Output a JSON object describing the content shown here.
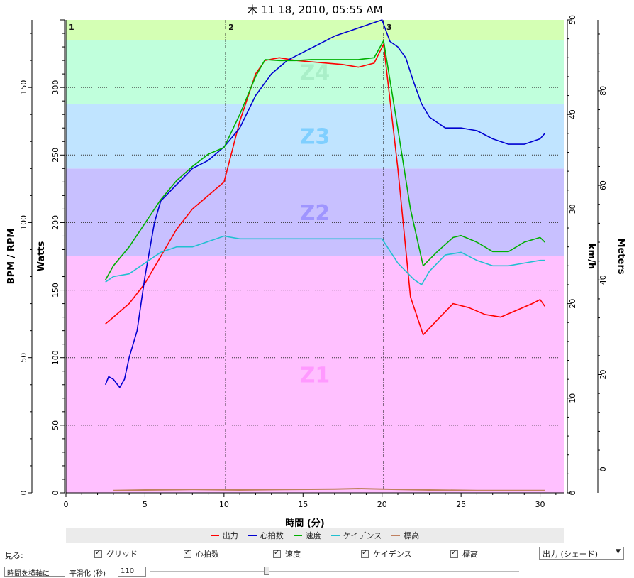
{
  "chart_data": {
    "type": "line",
    "title": "木 11 18, 2010, 05:55 AM",
    "xlabel": "時間 (分)",
    "x_ticks": [
      0,
      5,
      10,
      15,
      20,
      25,
      30
    ],
    "xlim": [
      0,
      31.5
    ],
    "axes": {
      "bpm_rpm": {
        "label": "BPM / RPM",
        "range": [
          0,
          175
        ],
        "ticks": [
          0,
          50,
          100,
          150
        ]
      },
      "watts": {
        "label": "Watts",
        "range": [
          0,
          350
        ],
        "ticks": [
          0,
          50,
          100,
          150,
          200,
          250,
          300
        ]
      },
      "kmh": {
        "label": "km/h",
        "range": [
          0,
          50
        ],
        "ticks": [
          0,
          10,
          20,
          30,
          40,
          50
        ]
      },
      "meters": {
        "label": "Meters",
        "range": [
          -5,
          95
        ],
        "ticks": [
          0,
          20,
          40,
          60,
          80
        ]
      }
    },
    "zones": [
      {
        "label": "Z1",
        "from": 0,
        "to": 175,
        "color": "#ffc0ff",
        "text_color": "#ff99ff"
      },
      {
        "label": "Z2",
        "from": 175,
        "to": 240,
        "color": "#c8c0ff",
        "text_color": "#9f95ff"
      },
      {
        "label": "Z3",
        "from": 240,
        "to": 288,
        "color": "#c0e4ff",
        "text_color": "#7fcfff"
      },
      {
        "label": "Z4",
        "from": 288,
        "to": 335,
        "color": "#c0ffdc",
        "text_color": "#a9efc8"
      },
      {
        "label": "",
        "from": 335,
        "to": 350,
        "color": "#d4ffb4",
        "text_color": "#ffffff"
      }
    ],
    "markers": [
      {
        "label": "1",
        "x": 0
      },
      {
        "label": "2",
        "x": 10.1
      },
      {
        "label": "3",
        "x": 20.1
      }
    ],
    "grid": true,
    "series": [
      {
        "name": "出力",
        "axis": "watts",
        "color": "#ff0000",
        "x": [
          2.5,
          3,
          4,
          5,
          6,
          7,
          8,
          9,
          10,
          11,
          12,
          12.6,
          13.5,
          14.5,
          15.5,
          16.5,
          17.5,
          18.5,
          19.5,
          20.1,
          21,
          21.8,
          22.6,
          23.5,
          24.5,
          25.5,
          26.5,
          27.5,
          28.5,
          29.5,
          30,
          30.3
        ],
        "y": [
          125,
          130,
          140,
          155,
          175,
          195,
          210,
          220,
          230,
          275,
          310,
          320,
          322,
          320,
          319,
          318,
          317,
          315,
          318,
          332,
          240,
          145,
          117,
          128,
          140,
          137,
          132,
          130,
          135,
          140,
          143,
          138
        ]
      },
      {
        "name": "心拍数",
        "axis": "bpm_rpm",
        "color": "#0000d0",
        "x": [
          2.5,
          2.7,
          3,
          3.4,
          3.7,
          4,
          4.5,
          5,
          5.6,
          6,
          7,
          8,
          9,
          10,
          11,
          12,
          13,
          14,
          15,
          16,
          17,
          18,
          19,
          20,
          20.5,
          21,
          21.5,
          22,
          22.5,
          23,
          24,
          25,
          26,
          27,
          28,
          29,
          30,
          30.3
        ],
        "y": [
          40,
          43,
          42,
          39,
          42,
          50,
          60,
          80,
          100,
          108,
          114,
          120,
          123,
          128,
          135,
          147,
          155,
          160,
          163,
          166,
          169,
          171,
          173,
          175,
          167,
          165,
          161,
          152,
          144,
          139,
          135,
          135,
          134,
          131,
          129,
          129,
          131,
          133
        ]
      },
      {
        "name": "速度",
        "axis": "kmh",
        "color": "#00b000",
        "x": [
          2.5,
          3,
          4,
          5,
          6,
          7,
          8,
          9,
          10,
          11,
          12,
          12.6,
          13.5,
          14.5,
          15.5,
          16.5,
          17.5,
          18.5,
          19.5,
          20.1,
          21,
          21.8,
          22.6,
          23.5,
          24.5,
          25,
          26,
          27,
          28,
          29,
          30,
          30.3
        ],
        "y": [
          22.5,
          24,
          26,
          28.5,
          31,
          33,
          34.5,
          35.8,
          36.5,
          40,
          44,
          45.8,
          45.7,
          45.7,
          45.8,
          45.8,
          45.8,
          45.8,
          46,
          47.8,
          38.5,
          30,
          24,
          25.5,
          27,
          27.2,
          26.5,
          25.5,
          25.5,
          26.5,
          27,
          26.5
        ]
      },
      {
        "name": "ケイデンス",
        "axis": "bpm_rpm",
        "color": "#20c0d0",
        "x": [
          2.5,
          3,
          4,
          5,
          6,
          7,
          8,
          9,
          10,
          11,
          12,
          13,
          14,
          15,
          16,
          17,
          18,
          19,
          20,
          21,
          22,
          22.5,
          23,
          24,
          25,
          26,
          27,
          28,
          29,
          30,
          30.3
        ],
        "y": [
          78,
          80,
          81,
          85,
          89,
          91,
          91,
          93,
          95,
          94,
          94,
          94,
          94,
          94,
          94,
          94,
          94,
          94,
          94,
          85,
          79,
          77,
          82,
          88,
          89,
          86,
          84,
          84,
          85,
          86,
          86
        ]
      },
      {
        "name": "標高",
        "axis": "meters",
        "color": "#c08060",
        "x": [
          3,
          5,
          8,
          11,
          14,
          17,
          18.5,
          20,
          23,
          26,
          29,
          30.3
        ],
        "y": [
          -4.5,
          -4.4,
          -4.3,
          -4.4,
          -4.3,
          -4.2,
          -4.1,
          -4.2,
          -4.4,
          -4.5,
          -4.5,
          -4.5
        ]
      }
    ],
    "legend_placement": "bottom"
  },
  "controls": {
    "show_label": "見る:",
    "checkboxes": [
      {
        "label": "グリッド",
        "checked": true
      },
      {
        "label": "心拍数",
        "checked": true
      },
      {
        "label": "速度",
        "checked": true
      },
      {
        "label": "ケイデンス",
        "checked": true
      },
      {
        "label": "標高",
        "checked": true
      }
    ],
    "shade_select": "出力 (シェード)",
    "xaxis_select": "時間を横軸に",
    "smoothing_label": "平滑化 (秒)",
    "smoothing_value": "110"
  }
}
